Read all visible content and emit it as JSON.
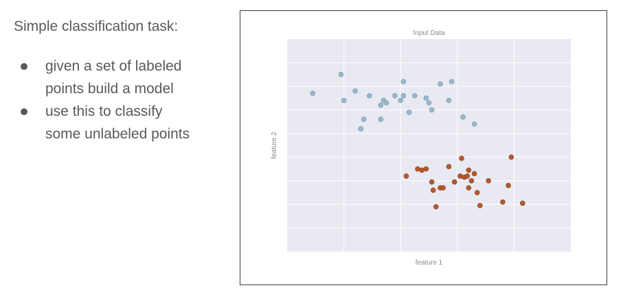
{
  "slide": {
    "heading": "Simple classification task:",
    "bullets": [
      {
        "lines": [
          "given a set of labeled",
          "points build a model"
        ]
      },
      {
        "lines": [
          "use this to classify",
          "some unlabeled points"
        ]
      }
    ]
  },
  "chart_data": {
    "type": "scatter",
    "title": "Input Data",
    "xlabel": "feature 1",
    "ylabel": "feature 2",
    "xlim": [
      0,
      10
    ],
    "ylim": [
      0,
      9
    ],
    "grid": true,
    "legend": "none",
    "series": [
      {
        "color": "#9ab8cb",
        "stroke": "#7aa0b5",
        "points": [
          [
            0.9,
            6.7
          ],
          [
            1.9,
            7.5
          ],
          [
            2.0,
            6.4
          ],
          [
            2.4,
            6.8
          ],
          [
            2.7,
            5.6
          ],
          [
            2.9,
            6.6
          ],
          [
            2.6,
            5.2
          ],
          [
            3.3,
            5.6
          ],
          [
            3.3,
            6.2
          ],
          [
            3.4,
            6.4
          ],
          [
            3.5,
            6.3
          ],
          [
            3.8,
            6.6
          ],
          [
            4.0,
            6.4
          ],
          [
            4.1,
            7.2
          ],
          [
            4.1,
            6.6
          ],
          [
            4.3,
            5.9
          ],
          [
            4.5,
            6.6
          ],
          [
            4.9,
            6.5
          ],
          [
            5.1,
            6.0
          ],
          [
            5.0,
            6.3
          ],
          [
            5.4,
            7.1
          ],
          [
            5.8,
            7.2
          ],
          [
            5.7,
            6.4
          ],
          [
            6.2,
            5.7
          ],
          [
            6.6,
            5.4
          ]
        ]
      },
      {
        "color": "#b55a30",
        "stroke": "#8f4424",
        "points": [
          [
            4.2,
            3.2
          ],
          [
            4.6,
            3.5
          ],
          [
            4.75,
            3.45
          ],
          [
            4.9,
            3.5
          ],
          [
            5.1,
            2.95
          ],
          [
            5.15,
            2.6
          ],
          [
            5.25,
            1.9
          ],
          [
            5.4,
            2.7
          ],
          [
            5.5,
            2.7
          ],
          [
            5.7,
            3.6
          ],
          [
            5.9,
            2.95
          ],
          [
            6.1,
            3.2
          ],
          [
            6.15,
            3.95
          ],
          [
            6.25,
            3.15
          ],
          [
            6.35,
            3.2
          ],
          [
            6.4,
            3.45
          ],
          [
            6.4,
            2.7
          ],
          [
            6.5,
            3.0
          ],
          [
            6.6,
            3.3
          ],
          [
            6.7,
            2.5
          ],
          [
            6.8,
            1.95
          ],
          [
            7.1,
            3.0
          ],
          [
            7.6,
            2.1
          ],
          [
            7.8,
            2.8
          ],
          [
            7.9,
            4.0
          ],
          [
            8.3,
            2.05
          ]
        ]
      }
    ]
  }
}
